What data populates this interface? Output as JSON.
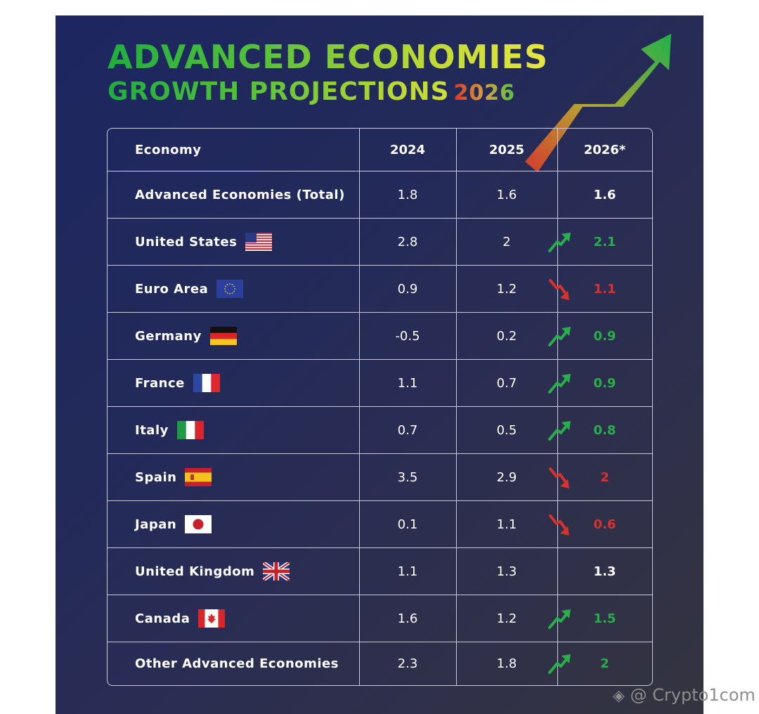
{
  "title": {
    "line1": "ADVANCED ECONOMIES",
    "line2": "GROWTH PROJECTIONS",
    "year": "2026"
  },
  "table": {
    "headers": [
      "Economy",
      "2024",
      "2025",
      "2026*"
    ],
    "rows": [
      {
        "name": "Advanced Economies (Total)",
        "y2024": "1.8",
        "y2025": "1.6",
        "y2026": "1.6",
        "trend": "none",
        "flag": ""
      },
      {
        "name": "United States",
        "y2024": "2.8",
        "y2025": "2",
        "y2026": "2.1",
        "trend": "up",
        "flag": "us-flag-icon"
      },
      {
        "name": "Euro Area",
        "y2024": "0.9",
        "y2025": "1.2",
        "y2026": "1.1",
        "trend": "down",
        "flag": "eu-flag-icon"
      },
      {
        "name": "Germany",
        "y2024": "-0.5",
        "y2025": "0.2",
        "y2026": "0.9",
        "trend": "up",
        "flag": "germany-flag-icon"
      },
      {
        "name": "France",
        "y2024": "1.1",
        "y2025": "0.7",
        "y2026": "0.9",
        "trend": "up",
        "flag": "france-flag-icon"
      },
      {
        "name": "Italy",
        "y2024": "0.7",
        "y2025": "0.5",
        "y2026": "0.8",
        "trend": "up",
        "flag": "italy-flag-icon"
      },
      {
        "name": "Spain",
        "y2024": "3.5",
        "y2025": "2.9",
        "y2026": "2",
        "trend": "down",
        "flag": "spain-flag-icon"
      },
      {
        "name": "Japan",
        "y2024": "0.1",
        "y2025": "1.1",
        "y2026": "0.6",
        "trend": "down",
        "flag": "japan-flag-icon"
      },
      {
        "name": "United Kingdom",
        "y2024": "1.1",
        "y2025": "1.3",
        "y2026": "1.3",
        "trend": "none",
        "flag": "uk-flag-icon"
      },
      {
        "name": "Canada",
        "y2024": "1.6",
        "y2025": "1.2",
        "y2026": "1.5",
        "trend": "up",
        "flag": "canada-flag-icon"
      },
      {
        "name": "Other Advanced Economies",
        "y2024": "2.3",
        "y2025": "1.8",
        "y2026": "2",
        "trend": "up",
        "flag": ""
      }
    ]
  },
  "colors": {
    "up": "#27b04a",
    "down": "#d8322d",
    "background": "#222a5a"
  },
  "watermark": "@ Crypto1com"
}
